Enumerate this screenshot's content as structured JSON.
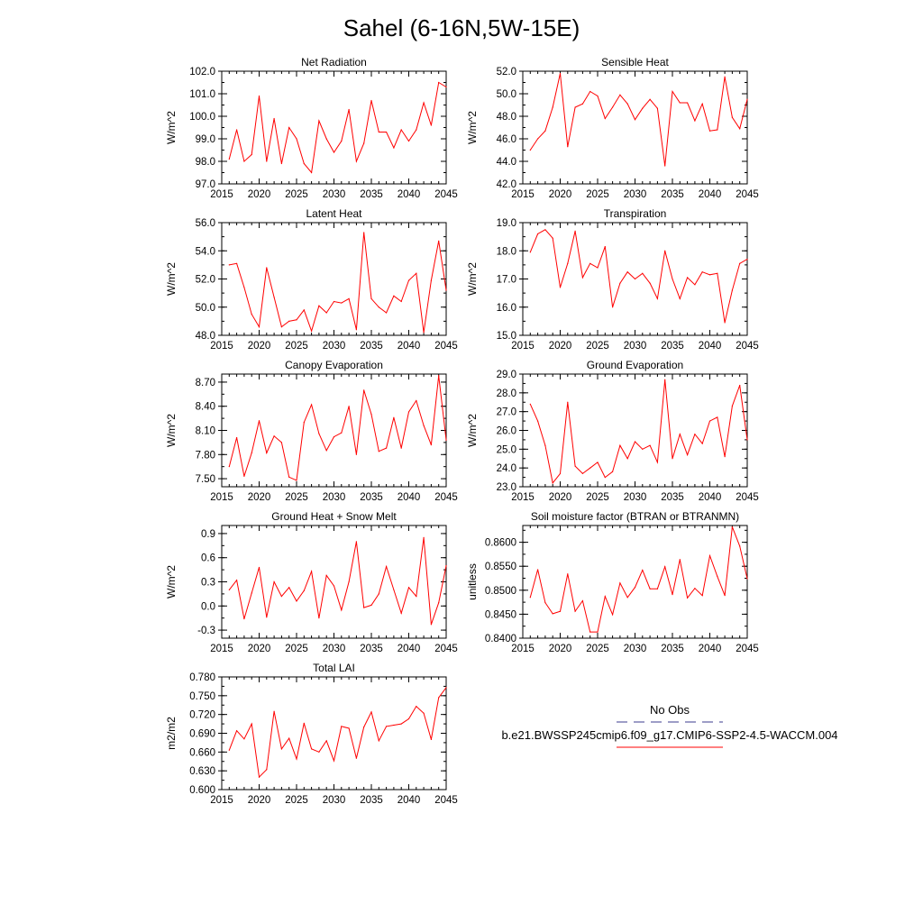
{
  "title": "Sahel (6-16N,5W-15E)",
  "colors": {
    "series": "#ff0000",
    "obs": "#3b3b8f",
    "axis": "#000000"
  },
  "legend": {
    "obs_label": "No Obs",
    "model_label": "b.e21.BWSSP245cmip6.f09_g17.CMIP6-SSP2-4.5-WACCM.004"
  },
  "chart_data": [
    {
      "type": "line",
      "title": "Net Radiation",
      "ylabel": "W/m^2",
      "xlim": [
        2015,
        2045
      ],
      "ylim": [
        97.0,
        102.0
      ],
      "xticks": [
        2015,
        2020,
        2025,
        2030,
        2035,
        2040,
        2045
      ],
      "xtick_labels": [
        "2015",
        "2020",
        "2025",
        "2030",
        "2035",
        "2040",
        "2045"
      ],
      "yticks": [
        97.0,
        98.0,
        99.0,
        100.0,
        101.0,
        102.0
      ],
      "ytick_labels": [
        "97.0",
        "98.0",
        "99.0",
        "100.0",
        "101.0",
        "102.0"
      ],
      "x": [
        2016,
        2017,
        2018,
        2019,
        2020,
        2021,
        2022,
        2023,
        2024,
        2025,
        2026,
        2027,
        2028,
        2029,
        2030,
        2031,
        2032,
        2033,
        2034,
        2035,
        2036,
        2037,
        2038,
        2039,
        2040,
        2041,
        2042,
        2043,
        2044,
        2045
      ],
      "values": [
        98.1,
        99.4,
        98.0,
        98.3,
        100.9,
        98.0,
        99.9,
        97.9,
        99.5,
        99.0,
        97.9,
        97.5,
        99.8,
        99.0,
        98.4,
        98.9,
        100.3,
        98.0,
        98.8,
        100.7,
        99.3,
        99.3,
        98.6,
        99.4,
        98.9,
        99.4,
        100.6,
        99.6,
        101.5,
        101.3
      ]
    },
    {
      "type": "line",
      "title": "Sensible Heat",
      "ylabel": "W/m^2",
      "xlim": [
        2015,
        2045
      ],
      "ylim": [
        42.0,
        52.0
      ],
      "xticks": [
        2015,
        2020,
        2025,
        2030,
        2035,
        2040,
        2045
      ],
      "xtick_labels": [
        "2015",
        "2020",
        "2025",
        "2030",
        "2035",
        "2040",
        "2045"
      ],
      "yticks": [
        42.0,
        44.0,
        46.0,
        48.0,
        50.0,
        52.0
      ],
      "ytick_labels": [
        "42.0",
        "44.0",
        "46.0",
        "48.0",
        "50.0",
        "52.0"
      ],
      "x": [
        2016,
        2017,
        2018,
        2019,
        2020,
        2021,
        2022,
        2023,
        2024,
        2025,
        2026,
        2027,
        2028,
        2029,
        2030,
        2031,
        2032,
        2033,
        2034,
        2035,
        2036,
        2037,
        2038,
        2039,
        2040,
        2041,
        2042,
        2043,
        2044,
        2045
      ],
      "values": [
        45.0,
        46.0,
        46.7,
        48.8,
        51.8,
        45.3,
        48.8,
        49.1,
        50.2,
        49.8,
        47.8,
        48.8,
        49.9,
        49.1,
        47.7,
        48.7,
        49.5,
        48.7,
        43.6,
        50.2,
        49.2,
        49.2,
        47.6,
        49.1,
        46.7,
        46.8,
        51.5,
        47.9,
        46.9,
        49.5
      ]
    },
    {
      "type": "line",
      "title": "Latent Heat",
      "ylabel": "W/m^2",
      "xlim": [
        2015,
        2045
      ],
      "ylim": [
        48.0,
        56.0
      ],
      "xticks": [
        2015,
        2020,
        2025,
        2030,
        2035,
        2040,
        2045
      ],
      "xtick_labels": [
        "2015",
        "2020",
        "2025",
        "2030",
        "2035",
        "2040",
        "2045"
      ],
      "yticks": [
        48.0,
        50.0,
        52.0,
        54.0,
        56.0
      ],
      "ytick_labels": [
        "48.0",
        "50.0",
        "52.0",
        "54.0",
        "56.0"
      ],
      "x": [
        2016,
        2017,
        2018,
        2019,
        2020,
        2021,
        2022,
        2023,
        2024,
        2025,
        2026,
        2027,
        2028,
        2029,
        2030,
        2031,
        2032,
        2033,
        2034,
        2035,
        2036,
        2037,
        2038,
        2039,
        2040,
        2041,
        2042,
        2043,
        2044,
        2045
      ],
      "values": [
        53.0,
        53.1,
        51.4,
        49.5,
        48.6,
        52.8,
        50.7,
        48.6,
        49.0,
        49.1,
        49.8,
        48.3,
        50.1,
        49.6,
        50.4,
        50.3,
        50.6,
        48.4,
        55.3,
        50.6,
        50.0,
        49.6,
        50.8,
        50.4,
        51.9,
        52.4,
        48.2,
        51.9,
        54.7,
        51.2
      ]
    },
    {
      "type": "line",
      "title": "Transpiration",
      "ylabel": "W/m^2",
      "xlim": [
        2015,
        2045
      ],
      "ylim": [
        15.0,
        19.0
      ],
      "xticks": [
        2015,
        2020,
        2025,
        2030,
        2035,
        2040,
        2045
      ],
      "xtick_labels": [
        "2015",
        "2020",
        "2025",
        "2030",
        "2035",
        "2040",
        "2045"
      ],
      "yticks": [
        15.0,
        16.0,
        17.0,
        18.0,
        19.0
      ],
      "ytick_labels": [
        "15.0",
        "16.0",
        "17.0",
        "18.0",
        "19.0"
      ],
      "x": [
        2016,
        2017,
        2018,
        2019,
        2020,
        2021,
        2022,
        2023,
        2024,
        2025,
        2026,
        2027,
        2028,
        2029,
        2030,
        2031,
        2032,
        2033,
        2034,
        2035,
        2036,
        2037,
        2038,
        2039,
        2040,
        2041,
        2042,
        2043,
        2044,
        2045
      ],
      "values": [
        17.95,
        18.6,
        18.75,
        18.45,
        16.7,
        17.55,
        18.7,
        17.05,
        17.55,
        17.4,
        18.15,
        16.0,
        16.85,
        17.25,
        17.0,
        17.2,
        16.85,
        16.3,
        18.0,
        17.0,
        16.3,
        17.05,
        16.8,
        17.25,
        17.15,
        17.2,
        15.45,
        16.6,
        17.55,
        17.7
      ]
    },
    {
      "type": "line",
      "title": "Canopy Evaporation",
      "ylabel": "W/m^2",
      "xlim": [
        2015,
        2045
      ],
      "ylim": [
        7.4,
        8.8
      ],
      "xticks": [
        2015,
        2020,
        2025,
        2030,
        2035,
        2040,
        2045
      ],
      "xtick_labels": [
        "2015",
        "2020",
        "2025",
        "2030",
        "2035",
        "2040",
        "2045"
      ],
      "yticks": [
        7.5,
        7.8,
        8.1,
        8.4,
        8.7
      ],
      "ytick_labels": [
        "7.50",
        "7.80",
        "8.10",
        "8.40",
        "8.70"
      ],
      "x": [
        2016,
        2017,
        2018,
        2019,
        2020,
        2021,
        2022,
        2023,
        2024,
        2025,
        2026,
        2027,
        2028,
        2029,
        2030,
        2031,
        2032,
        2033,
        2034,
        2035,
        2036,
        2037,
        2038,
        2039,
        2040,
        2041,
        2042,
        2043,
        2044,
        2045
      ],
      "values": [
        7.65,
        8.01,
        7.53,
        7.82,
        8.22,
        7.82,
        8.03,
        7.95,
        7.52,
        7.48,
        8.2,
        8.42,
        8.06,
        7.85,
        8.02,
        8.07,
        8.4,
        7.8,
        8.6,
        8.3,
        7.84,
        7.88,
        8.26,
        7.88,
        8.33,
        8.47,
        8.16,
        7.92,
        8.78,
        7.98
      ]
    },
    {
      "type": "line",
      "title": "Ground Evaporation",
      "ylabel": "W/m^2",
      "xlim": [
        2015,
        2045
      ],
      "ylim": [
        23.0,
        29.0
      ],
      "xticks": [
        2015,
        2020,
        2025,
        2030,
        2035,
        2040,
        2045
      ],
      "xtick_labels": [
        "2015",
        "2020",
        "2025",
        "2030",
        "2035",
        "2040",
        "2045"
      ],
      "yticks": [
        23.0,
        24.0,
        25.0,
        26.0,
        27.0,
        28.0,
        29.0
      ],
      "ytick_labels": [
        "23.0",
        "24.0",
        "25.0",
        "26.0",
        "27.0",
        "28.0",
        "29.0"
      ],
      "x": [
        2016,
        2017,
        2018,
        2019,
        2020,
        2021,
        2022,
        2023,
        2024,
        2025,
        2026,
        2027,
        2028,
        2029,
        2030,
        2031,
        2032,
        2033,
        2034,
        2035,
        2036,
        2037,
        2038,
        2039,
        2040,
        2041,
        2042,
        2043,
        2044,
        2045
      ],
      "values": [
        27.4,
        26.5,
        25.2,
        23.2,
        23.7,
        27.5,
        24.1,
        23.7,
        24.0,
        24.3,
        23.5,
        23.8,
        25.2,
        24.5,
        25.4,
        25.0,
        25.2,
        24.3,
        28.7,
        24.5,
        25.8,
        24.7,
        25.8,
        25.3,
        26.5,
        26.7,
        24.6,
        27.3,
        28.4,
        25.5
      ]
    },
    {
      "type": "line",
      "title": "Ground Heat + Snow Melt",
      "ylabel": "W/m^2",
      "xlim": [
        2015,
        2045
      ],
      "ylim": [
        -0.4,
        1.0
      ],
      "xticks": [
        2015,
        2020,
        2025,
        2030,
        2035,
        2040,
        2045
      ],
      "xtick_labels": [
        "2015",
        "2020",
        "2025",
        "2030",
        "2035",
        "2040",
        "2045"
      ],
      "yticks": [
        -0.3,
        0.0,
        0.3,
        0.6,
        0.9
      ],
      "ytick_labels": [
        "-0.3",
        "0.0",
        "0.3",
        "0.6",
        "0.9"
      ],
      "x": [
        2016,
        2017,
        2018,
        2019,
        2020,
        2021,
        2022,
        2023,
        2024,
        2025,
        2026,
        2027,
        2028,
        2029,
        2030,
        2031,
        2032,
        2033,
        2034,
        2035,
        2036,
        2037,
        2038,
        2039,
        2040,
        2041,
        2042,
        2043,
        2044,
        2045
      ],
      "values": [
        0.2,
        0.32,
        -0.16,
        0.16,
        0.48,
        -0.14,
        0.3,
        0.12,
        0.23,
        0.06,
        0.19,
        0.43,
        -0.15,
        0.38,
        0.25,
        -0.05,
        0.3,
        0.8,
        -0.02,
        0.01,
        0.15,
        0.49,
        0.2,
        -0.09,
        0.23,
        0.12,
        0.85,
        -0.23,
        0.04,
        0.5
      ]
    },
    {
      "type": "line",
      "title": "Soil moisture factor (BTRAN or BTRANMN)",
      "ylabel": "unitless",
      "xlim": [
        2015,
        2045
      ],
      "ylim": [
        0.84,
        0.8635
      ],
      "xticks": [
        2015,
        2020,
        2025,
        2030,
        2035,
        2040,
        2045
      ],
      "xtick_labels": [
        "2015",
        "2020",
        "2025",
        "2030",
        "2035",
        "2040",
        "2045"
      ],
      "yticks": [
        0.84,
        0.845,
        0.85,
        0.855,
        0.86
      ],
      "ytick_labels": [
        "0.8400",
        "0.8450",
        "0.8500",
        "0.8550",
        "0.8600"
      ],
      "x": [
        2016,
        2017,
        2018,
        2019,
        2020,
        2021,
        2022,
        2023,
        2024,
        2025,
        2026,
        2027,
        2028,
        2029,
        2030,
        2031,
        2032,
        2033,
        2034,
        2035,
        2036,
        2037,
        2038,
        2039,
        2040,
        2041,
        2042,
        2043,
        2044,
        2045
      ],
      "values": [
        0.8485,
        0.8543,
        0.8474,
        0.8451,
        0.8456,
        0.8534,
        0.8456,
        0.8478,
        0.8413,
        0.8413,
        0.8487,
        0.8449,
        0.8515,
        0.8485,
        0.8506,
        0.8542,
        0.8503,
        0.8503,
        0.8549,
        0.8491,
        0.8564,
        0.8484,
        0.8504,
        0.8489,
        0.8572,
        0.8529,
        0.8489,
        0.8632,
        0.8592,
        0.8524
      ]
    },
    {
      "type": "line",
      "title": "Total LAI",
      "ylabel": "m2/m2",
      "xlim": [
        2015,
        2045
      ],
      "ylim": [
        0.6,
        0.78
      ],
      "xticks": [
        2015,
        2020,
        2025,
        2030,
        2035,
        2040,
        2045
      ],
      "xtick_labels": [
        "2015",
        "2020",
        "2025",
        "2030",
        "2035",
        "2040",
        "2045"
      ],
      "yticks": [
        0.6,
        0.63,
        0.66,
        0.69,
        0.72,
        0.75,
        0.78
      ],
      "ytick_labels": [
        "0.600",
        "0.630",
        "0.660",
        "0.690",
        "0.720",
        "0.750",
        "0.780"
      ],
      "x": [
        2016,
        2017,
        2018,
        2019,
        2020,
        2021,
        2022,
        2023,
        2024,
        2025,
        2026,
        2027,
        2028,
        2029,
        2030,
        2031,
        2032,
        2033,
        2034,
        2035,
        2036,
        2037,
        2038,
        2039,
        2040,
        2041,
        2042,
        2043,
        2044,
        2045
      ],
      "values": [
        0.663,
        0.694,
        0.681,
        0.705,
        0.62,
        0.632,
        0.725,
        0.665,
        0.682,
        0.649,
        0.706,
        0.665,
        0.66,
        0.678,
        0.646,
        0.701,
        0.698,
        0.65,
        0.7,
        0.724,
        0.678,
        0.701,
        0.703,
        0.705,
        0.713,
        0.733,
        0.722,
        0.68,
        0.747,
        0.763
      ]
    }
  ]
}
